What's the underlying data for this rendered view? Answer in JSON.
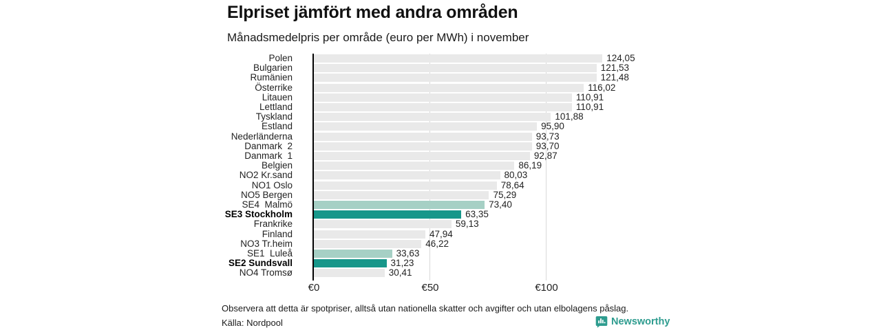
{
  "chart_data": {
    "type": "bar",
    "orientation": "horizontal",
    "title": "Elpriset jämfört med andra områden",
    "subtitle": "Månadsmedelpris per område (euro per MWh) i november",
    "xlabel": "",
    "ylabel": "",
    "xlim": [
      0,
      130
    ],
    "grid": "vertical",
    "unit": "euro per MWh",
    "x_ticks": [
      {
        "label": "€0",
        "value": 0
      },
      {
        "label": "€50",
        "value": 50
      },
      {
        "label": "€100",
        "value": 100
      }
    ],
    "colors": {
      "neutral": "#e9e9e9",
      "highlight_light": "#a6d0c5",
      "highlight": "#17978a"
    },
    "rows": [
      {
        "label": "Polen",
        "value": 124.05,
        "display": "124,05",
        "style": "neutral",
        "bold": false
      },
      {
        "label": "Bulgarien",
        "value": 121.53,
        "display": "121,53",
        "style": "neutral",
        "bold": false
      },
      {
        "label": "Rumänien",
        "value": 121.48,
        "display": "121,48",
        "style": "neutral",
        "bold": false
      },
      {
        "label": "Österrike",
        "value": 116.02,
        "display": "116,02",
        "style": "neutral",
        "bold": false
      },
      {
        "label": "Litauen",
        "value": 110.91,
        "display": "110,91",
        "style": "neutral",
        "bold": false
      },
      {
        "label": "Lettland",
        "value": 110.91,
        "display": "110,91",
        "style": "neutral",
        "bold": false
      },
      {
        "label": "Tyskland",
        "value": 101.88,
        "display": "101,88",
        "style": "neutral",
        "bold": false
      },
      {
        "label": "Estland",
        "value": 95.9,
        "display": "95,90",
        "style": "neutral",
        "bold": false
      },
      {
        "label": "Nederländerna",
        "value": 93.73,
        "display": "93,73",
        "style": "neutral",
        "bold": false
      },
      {
        "label": "Danmark  2",
        "value": 93.7,
        "display": "93,70",
        "style": "neutral",
        "bold": false
      },
      {
        "label": "Danmark  1",
        "value": 92.87,
        "display": "92,87",
        "style": "neutral",
        "bold": false
      },
      {
        "label": "Belgien",
        "value": 86.19,
        "display": "86,19",
        "style": "neutral",
        "bold": false
      },
      {
        "label": "NO2 Kr.sand",
        "value": 80.03,
        "display": "80,03",
        "style": "neutral",
        "bold": false
      },
      {
        "label": "NO1 Oslo",
        "value": 78.64,
        "display": "78,64",
        "style": "neutral",
        "bold": false
      },
      {
        "label": "NO5 Bergen",
        "value": 75.29,
        "display": "75,29",
        "style": "neutral",
        "bold": false
      },
      {
        "label": "SE4  Malmö",
        "value": 73.4,
        "display": "73,40",
        "style": "highlight_light",
        "bold": false
      },
      {
        "label": "SE3 Stockholm",
        "value": 63.35,
        "display": "63,35",
        "style": "highlight",
        "bold": true
      },
      {
        "label": "Frankrike",
        "value": 59.13,
        "display": "59,13",
        "style": "neutral",
        "bold": false
      },
      {
        "label": "Finland",
        "value": 47.94,
        "display": "47,94",
        "style": "neutral",
        "bold": false
      },
      {
        "label": "NO3 Tr.heim",
        "value": 46.22,
        "display": "46,22",
        "style": "neutral",
        "bold": false
      },
      {
        "label": "SE1  Luleå",
        "value": 33.63,
        "display": "33,63",
        "style": "highlight_light",
        "bold": false
      },
      {
        "label": "SE2 Sundsvall",
        "value": 31.23,
        "display": "31,23",
        "style": "highlight",
        "bold": true
      },
      {
        "label": "NO4 Tromsø",
        "value": 30.41,
        "display": "30,41",
        "style": "neutral",
        "bold": false
      }
    ]
  },
  "footer": {
    "note": "Observera att detta är spotpriser, alltså utan nationella skatter och avgifter och utan elbolagens påslag.",
    "source": "Källa: Nordpool",
    "brand": "Newsworthy",
    "brand_color": "#2e9c8f"
  }
}
